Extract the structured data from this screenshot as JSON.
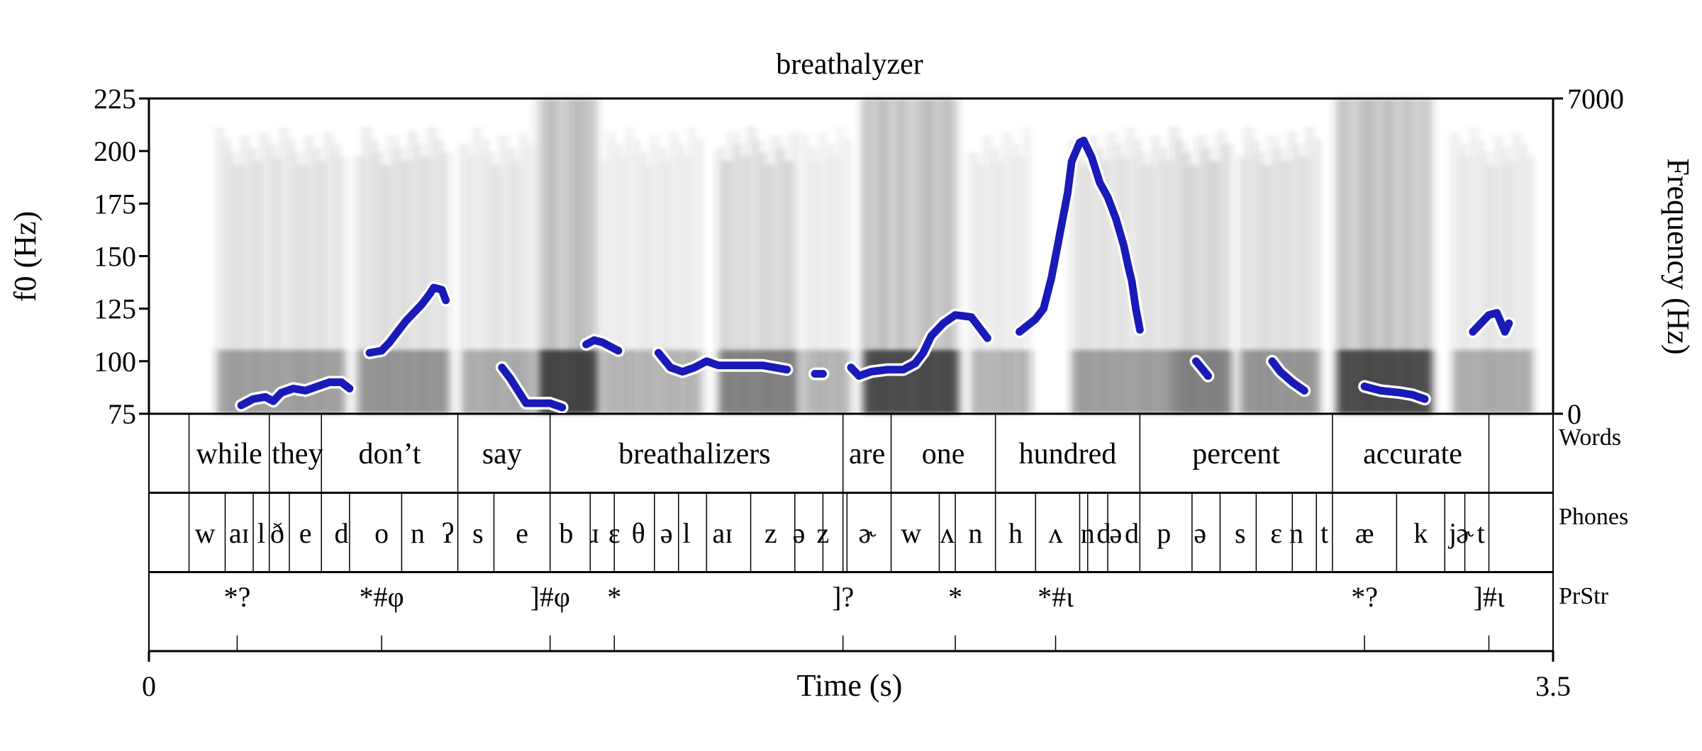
{
  "chart_data": {
    "type": "pitch-track-with-spectrogram",
    "title": "breathalyzer",
    "xlabel": "Time (s)",
    "ylabel_left": "f0 (Hz)",
    "ylabel_right": "Frequency (Hz)",
    "x_range": [
      0,
      3.5
    ],
    "x_tick_labels": [
      "0",
      "3.5"
    ],
    "f0_range": [
      75,
      225
    ],
    "f0_ticks": [
      75,
      100,
      125,
      150,
      175,
      200,
      225
    ],
    "freq_range": [
      0,
      7000
    ],
    "freq_tick_labels": [
      "0",
      "7000"
    ],
    "pitch_color": "#1a1ab8",
    "spectrogram_energy": [
      {
        "start": 0.17,
        "end": 0.49,
        "strength": 0.4
      },
      {
        "start": 0.52,
        "end": 0.75,
        "strength": 0.45
      },
      {
        "start": 0.78,
        "end": 0.96,
        "strength": 0.35
      },
      {
        "start": 0.97,
        "end": 1.12,
        "strength": 0.9
      },
      {
        "start": 1.13,
        "end": 1.38,
        "strength": 0.3
      },
      {
        "start": 1.42,
        "end": 1.62,
        "strength": 0.55
      },
      {
        "start": 1.63,
        "end": 1.75,
        "strength": 0.3
      },
      {
        "start": 1.78,
        "end": 2.02,
        "strength": 0.85
      },
      {
        "start": 2.05,
        "end": 2.2,
        "strength": 0.3
      },
      {
        "start": 2.3,
        "end": 2.55,
        "strength": 0.4
      },
      {
        "start": 2.55,
        "end": 2.7,
        "strength": 0.55
      },
      {
        "start": 2.72,
        "end": 2.92,
        "strength": 0.45
      },
      {
        "start": 2.96,
        "end": 3.2,
        "strength": 0.85
      },
      {
        "start": 3.25,
        "end": 3.45,
        "strength": 0.35
      }
    ],
    "pitch_segments": [
      [
        [
          0.23,
          79
        ],
        [
          0.26,
          82
        ],
        [
          0.29,
          83
        ],
        [
          0.31,
          81
        ],
        [
          0.33,
          85
        ],
        [
          0.36,
          87
        ],
        [
          0.39,
          86
        ],
        [
          0.42,
          88
        ],
        [
          0.45,
          90
        ],
        [
          0.48,
          90
        ],
        [
          0.5,
          87
        ]
      ],
      [
        [
          0.55,
          104
        ],
        [
          0.58,
          105
        ],
        [
          0.6,
          109
        ],
        [
          0.62,
          114
        ],
        [
          0.64,
          119
        ],
        [
          0.66,
          123
        ],
        [
          0.68,
          127
        ],
        [
          0.7,
          132
        ],
        [
          0.71,
          135
        ],
        [
          0.73,
          134
        ],
        [
          0.74,
          129
        ]
      ],
      [
        [
          0.88,
          97
        ],
        [
          0.9,
          92
        ],
        [
          0.92,
          86
        ],
        [
          0.94,
          80
        ],
        [
          0.97,
          80
        ],
        [
          1.0,
          80
        ],
        [
          1.03,
          78
        ]
      ],
      [
        [
          1.09,
          108
        ],
        [
          1.11,
          110
        ],
        [
          1.13,
          109
        ],
        [
          1.15,
          107
        ],
        [
          1.17,
          105
        ]
      ],
      [
        [
          1.27,
          104
        ],
        [
          1.3,
          97
        ],
        [
          1.33,
          95
        ],
        [
          1.36,
          97
        ],
        [
          1.39,
          100
        ],
        [
          1.42,
          98
        ],
        [
          1.46,
          98
        ],
        [
          1.5,
          98
        ],
        [
          1.53,
          98
        ],
        [
          1.56,
          97
        ],
        [
          1.59,
          96
        ]
      ],
      [
        [
          1.66,
          94
        ],
        [
          1.68,
          94
        ]
      ],
      [
        [
          1.75,
          97
        ],
        [
          1.77,
          93
        ],
        [
          1.8,
          95
        ],
        [
          1.84,
          96
        ],
        [
          1.88,
          96
        ],
        [
          1.91,
          99
        ],
        [
          1.93,
          104
        ],
        [
          1.95,
          112
        ],
        [
          1.98,
          118
        ],
        [
          2.01,
          122
        ],
        [
          2.05,
          121
        ],
        [
          2.07,
          116
        ],
        [
          2.09,
          111
        ]
      ],
      [
        [
          2.17,
          114
        ],
        [
          2.19,
          117
        ],
        [
          2.21,
          120
        ],
        [
          2.23,
          125
        ],
        [
          2.25,
          140
        ],
        [
          2.27,
          160
        ],
        [
          2.29,
          180
        ],
        [
          2.3,
          195
        ],
        [
          2.32,
          204
        ],
        [
          2.33,
          205
        ],
        [
          2.35,
          197
        ],
        [
          2.37,
          185
        ],
        [
          2.39,
          178
        ],
        [
          2.41,
          168
        ],
        [
          2.43,
          155
        ],
        [
          2.44,
          146
        ],
        [
          2.45,
          138
        ],
        [
          2.46,
          125
        ],
        [
          2.47,
          115
        ]
      ],
      [
        [
          2.61,
          100
        ],
        [
          2.64,
          93
        ]
      ],
      [
        [
          2.8,
          100
        ],
        [
          2.82,
          95
        ],
        [
          2.85,
          90
        ],
        [
          2.88,
          86
        ]
      ],
      [
        [
          3.03,
          88
        ],
        [
          3.07,
          86
        ],
        [
          3.12,
          85
        ],
        [
          3.15,
          84
        ],
        [
          3.18,
          82
        ]
      ],
      [
        [
          3.3,
          114
        ],
        [
          3.32,
          118
        ],
        [
          3.34,
          122
        ],
        [
          3.36,
          123
        ],
        [
          3.38,
          114
        ],
        [
          3.39,
          118
        ]
      ]
    ],
    "tiers": [
      {
        "name": "Words",
        "boundaries": [
          0.1,
          0.3,
          0.43,
          0.77,
          1.0,
          1.73,
          1.85,
          2.11,
          2.47,
          2.95,
          3.34
        ],
        "labels": [
          {
            "t": 0.2,
            "text": "while"
          },
          {
            "t": 0.37,
            "text": "they"
          },
          {
            "t": 0.6,
            "text": "don’t"
          },
          {
            "t": 0.88,
            "text": "say"
          },
          {
            "t": 1.36,
            "text": "breathalizers"
          },
          {
            "t": 1.79,
            "text": "are"
          },
          {
            "t": 1.98,
            "text": "one"
          },
          {
            "t": 2.29,
            "text": "hundred"
          },
          {
            "t": 2.71,
            "text": "percent"
          },
          {
            "t": 3.15,
            "text": "accurate"
          }
        ]
      },
      {
        "name": "Phones",
        "boundaries": [
          0.1,
          0.19,
          0.26,
          0.3,
          0.35,
          0.43,
          0.5,
          0.63,
          0.77,
          0.86,
          1.0,
          1.1,
          1.16,
          1.26,
          1.32,
          1.39,
          1.5,
          1.61,
          1.68,
          1.74,
          1.73,
          1.85,
          1.97,
          2.01,
          2.11,
          2.21,
          2.32,
          2.34,
          2.39,
          2.47,
          2.6,
          2.67,
          2.76,
          2.85,
          2.91,
          2.95,
          3.11,
          3.23,
          3.28,
          3.34
        ],
        "labels": [
          {
            "t": 0.14,
            "text": "w"
          },
          {
            "t": 0.225,
            "text": "aɪ"
          },
          {
            "t": 0.28,
            "text": "l"
          },
          {
            "t": 0.32,
            "text": "ð"
          },
          {
            "t": 0.39,
            "text": "e"
          },
          {
            "t": 0.48,
            "text": "d"
          },
          {
            "t": 0.58,
            "text": "o"
          },
          {
            "t": 0.67,
            "text": "n"
          },
          {
            "t": 0.745,
            "text": "ʔ"
          },
          {
            "t": 0.82,
            "text": "s"
          },
          {
            "t": 0.93,
            "text": "e"
          },
          {
            "t": 1.04,
            "text": "b"
          },
          {
            "t": 1.11,
            "text": "ɹ"
          },
          {
            "t": 1.16,
            "text": "ɛ"
          },
          {
            "t": 1.22,
            "text": "θ"
          },
          {
            "t": 1.29,
            "text": "ə"
          },
          {
            "t": 1.34,
            "text": "l"
          },
          {
            "t": 1.43,
            "text": "aɪ"
          },
          {
            "t": 1.55,
            "text": "z"
          },
          {
            "t": 1.62,
            "text": "ə"
          },
          {
            "t": 1.68,
            "text": "z"
          },
          {
            "t": 1.79,
            "text": "ɚ"
          },
          {
            "t": 1.9,
            "text": "w"
          },
          {
            "t": 1.99,
            "text": "ʌ"
          },
          {
            "t": 2.06,
            "text": "n"
          },
          {
            "t": 2.16,
            "text": "h"
          },
          {
            "t": 2.26,
            "text": "ʌ"
          },
          {
            "t": 2.34,
            "text": "n"
          },
          {
            "t": 2.38,
            "text": "d"
          },
          {
            "t": 2.41,
            "text": "ə"
          },
          {
            "t": 2.45,
            "text": "d"
          },
          {
            "t": 2.53,
            "text": "p"
          },
          {
            "t": 2.62,
            "text": "ə"
          },
          {
            "t": 2.72,
            "text": "s"
          },
          {
            "t": 2.81,
            "text": "ɛ"
          },
          {
            "t": 2.86,
            "text": "n"
          },
          {
            "t": 2.93,
            "text": "t"
          },
          {
            "t": 3.03,
            "text": "æ"
          },
          {
            "t": 3.17,
            "text": "k"
          },
          {
            "t": 3.25,
            "text": "j"
          },
          {
            "t": 3.28,
            "text": "ɚ"
          },
          {
            "t": 3.32,
            "text": "t"
          }
        ]
      },
      {
        "name": "PrStr",
        "boundaries": [],
        "labels": [
          {
            "t": 0.22,
            "text": "*?"
          },
          {
            "t": 0.58,
            "text": "*#φ"
          },
          {
            "t": 1.0,
            "text": "]#φ"
          },
          {
            "t": 1.16,
            "text": "*"
          },
          {
            "t": 1.73,
            "text": "]?"
          },
          {
            "t": 2.01,
            "text": "*"
          },
          {
            "t": 2.26,
            "text": "*#ι"
          },
          {
            "t": 3.03,
            "text": "*?"
          },
          {
            "t": 3.34,
            "text": "]#ι"
          }
        ]
      }
    ]
  }
}
